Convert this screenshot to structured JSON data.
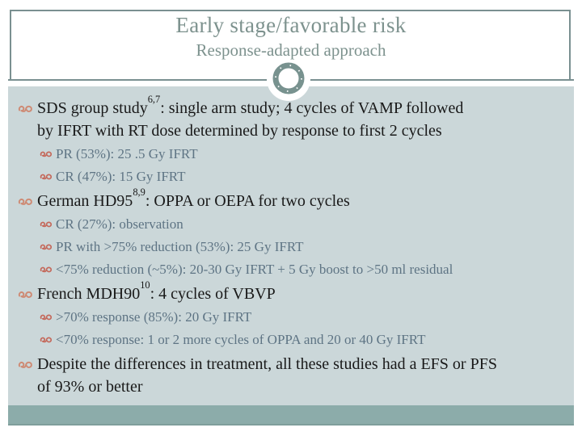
{
  "slide": {
    "title": "Early stage/favorable risk",
    "subtitle": "Response-adapted approach",
    "colors": {
      "frame": "#7a9091",
      "title_text": "#7d928e",
      "body_bg": "#cbd7d9",
      "footer_bg": "#8cacaa",
      "footer_edge": "#7f9e9b",
      "body_text": "#191919",
      "sub_text": "#5e7484",
      "bullet_l1": "#ce8a74",
      "bullet_l2": "#c4685a",
      "ornament": "#78928f"
    },
    "bullets": [
      {
        "level": 1,
        "lines": [
          [
            {
              "t": "SDS group study"
            },
            {
              "t": "6,7",
              "sup": true
            },
            {
              "t": ": single arm study; 4 cycles of VAMP followed"
            }
          ],
          [
            {
              "t": "by IFRT with RT dose determined by response to first 2 cycles"
            }
          ]
        ]
      },
      {
        "level": 2,
        "lines": [
          [
            {
              "t": "PR (53%): 25 .5 Gy IFRT"
            }
          ]
        ]
      },
      {
        "level": 2,
        "lines": [
          [
            {
              "t": "CR (47%): 15 Gy IFRT"
            }
          ]
        ]
      },
      {
        "level": 1,
        "lines": [
          [
            {
              "t": "German HD95"
            },
            {
              "t": "8,9",
              "sup": true
            },
            {
              "t": ": OPPA or OEPA for two cycles"
            }
          ]
        ]
      },
      {
        "level": 2,
        "lines": [
          [
            {
              "t": "CR (27%): observation"
            }
          ]
        ]
      },
      {
        "level": 2,
        "lines": [
          [
            {
              "t": "PR with >75% reduction (53%): 25 Gy IFRT"
            }
          ]
        ]
      },
      {
        "level": 2,
        "lines": [
          [
            {
              "t": "<75% reduction (~5%): 20-30 Gy IFRT + 5 Gy boost to >50 ml residual"
            }
          ]
        ]
      },
      {
        "level": 1,
        "lines": [
          [
            {
              "t": "French MDH90"
            },
            {
              "t": "10",
              "sup": true
            },
            {
              "t": ": 4 cycles of VBVP"
            }
          ]
        ]
      },
      {
        "level": 2,
        "lines": [
          [
            {
              "t": ">70% response (85%): 20 Gy IFRT"
            }
          ]
        ]
      },
      {
        "level": 2,
        "lines": [
          [
            {
              "t": "<70% response: 1 or 2 more cycles of OPPA and 20 or 40 Gy IFRT"
            }
          ]
        ]
      },
      {
        "level": 1,
        "lines": [
          [
            {
              "t": "Despite the differences in treatment, all these studies had a EFS or PFS"
            }
          ],
          [
            {
              "t": "of 93% or better"
            }
          ]
        ]
      }
    ]
  }
}
